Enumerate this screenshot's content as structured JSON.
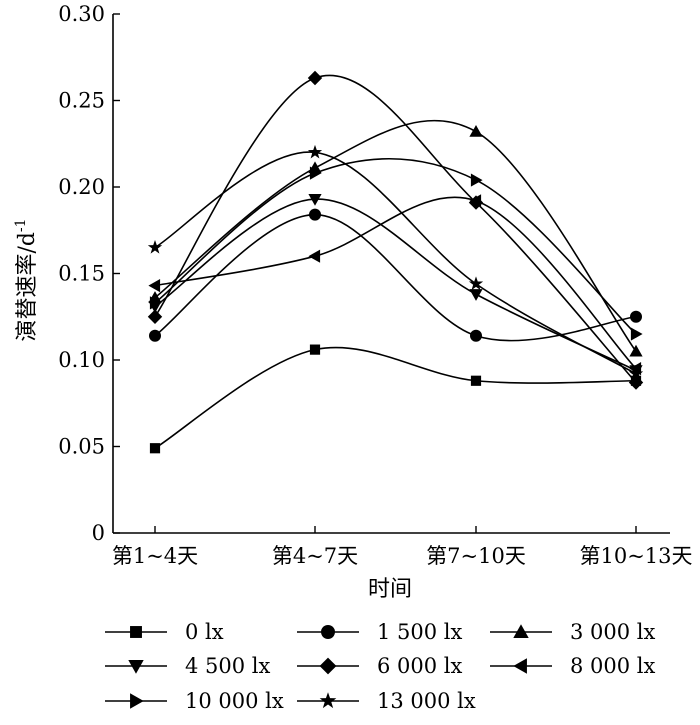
{
  "chart_data": {
    "type": "line",
    "categories": [
      "第1~4天",
      "第4~7天",
      "第7~10天",
      "第10~13天"
    ],
    "xlabel": "时间",
    "ylabel": "演替速率/d",
    "ylabel_sup": "-1",
    "ylim": [
      0,
      0.3
    ],
    "yticks": [
      0,
      0.05,
      0.1,
      0.15,
      0.2,
      0.25,
      0.3
    ],
    "ytick_labels": [
      "0",
      "0.05",
      "0.10",
      "0.15",
      "0.20",
      "0.25",
      "0.30"
    ],
    "grid": false,
    "legend_position": "bottom",
    "line_color": "#000000",
    "smooth": true,
    "series": [
      {
        "name": "0 lx",
        "marker": "square",
        "values": [
          0.049,
          0.106,
          0.088,
          0.088
        ]
      },
      {
        "name": "1 500 lx",
        "marker": "circle",
        "values": [
          0.114,
          0.184,
          0.114,
          0.125
        ]
      },
      {
        "name": "3 000 lx",
        "marker": "triangle-up",
        "values": [
          0.136,
          0.211,
          0.232,
          0.105
        ]
      },
      {
        "name": "4 500 lx",
        "marker": "triangle-down",
        "values": [
          0.131,
          0.193,
          0.138,
          0.094
        ]
      },
      {
        "name": "6 000 lx",
        "marker": "diamond",
        "values": [
          0.125,
          0.263,
          0.191,
          0.087
        ]
      },
      {
        "name": "8 000 lx",
        "marker": "triangle-left",
        "values": [
          0.143,
          0.16,
          0.192,
          0.095
        ]
      },
      {
        "name": "10 000 lx",
        "marker": "triangle-right",
        "values": [
          0.133,
          0.208,
          0.204,
          0.115
        ]
      },
      {
        "name": "13 000 lx",
        "marker": "star",
        "values": [
          0.165,
          0.22,
          0.144,
          0.092
        ]
      }
    ]
  }
}
